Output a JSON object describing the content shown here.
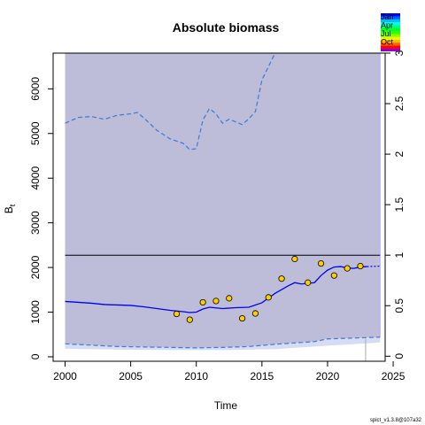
{
  "chart_data": {
    "type": "line",
    "title": "Absolute biomass",
    "xlabel": "Time",
    "ylabel": "B",
    "ylabel_subscript": "t",
    "xlim": [
      2000,
      2024
    ],
    "ylim": [
      -100,
      6800
    ],
    "ylim_right": [
      -0.05,
      3.0
    ],
    "x_ticks": [
      2000,
      2005,
      2010,
      2015,
      2020,
      2025
    ],
    "y_ticks": [
      0,
      1000,
      2000,
      3000,
      4000,
      5000,
      6000
    ],
    "y_ticks_right": [
      0,
      0.5,
      1,
      1.5,
      2,
      2.5,
      3
    ],
    "y_ticks_right_labels": [
      "0",
      "0.5",
      "1",
      "1.5",
      "2",
      "2.5",
      "3"
    ],
    "reference_line_right": 1,
    "colors": {
      "estimate": "#0000ee",
      "ci_line": "#3a7bd5",
      "ci_fill_upper": "#bdbdd9",
      "ci_fill_lower": "#d7dcf5",
      "points_fill": "#ffcc00",
      "points_stroke": "#000000"
    },
    "estimate": {
      "x": [
        2000,
        2001,
        2002,
        2003,
        2004,
        2005,
        2006,
        2007,
        2008,
        2009,
        2009.5,
        2010,
        2010.5,
        2011,
        2012,
        2013,
        2014,
        2015,
        2016,
        2017,
        2017.5,
        2018,
        2019,
        2019.5,
        2020,
        2020.5,
        2021,
        2021.5,
        2022,
        2022.5,
        2023
      ],
      "y": [
        1240,
        1220,
        1200,
        1170,
        1160,
        1150,
        1120,
        1080,
        1040,
        1010,
        990,
        1000,
        1070,
        1110,
        1080,
        1100,
        1110,
        1210,
        1420,
        1590,
        1660,
        1630,
        1660,
        1820,
        1940,
        2010,
        2020,
        1990,
        1980,
        2010,
        2020
      ]
    },
    "estimate_projection": {
      "x": [
        2023,
        2024
      ],
      "y": [
        2020,
        2030
      ]
    },
    "ci_upper": {
      "x": [
        2000,
        2001,
        2002,
        2003,
        2004,
        2005,
        2005.5,
        2006,
        2007,
        2008,
        2009,
        2009.5,
        2010,
        2010.5,
        2011,
        2011.5,
        2012,
        2012.5,
        2013,
        2013.5,
        2014,
        2014.5,
        2015,
        2016
      ],
      "y": [
        5230,
        5360,
        5380,
        5320,
        5410,
        5440,
        5470,
        5350,
        5070,
        4880,
        4780,
        4640,
        4660,
        5300,
        5560,
        5440,
        5230,
        5320,
        5260,
        5200,
        5330,
        5490,
        6200,
        7200
      ]
    },
    "ci_lower": {
      "x": [
        2000,
        2002,
        2004,
        2006,
        2008,
        2010,
        2012,
        2014,
        2016,
        2018,
        2019,
        2020,
        2022,
        2024
      ],
      "y": [
        290,
        260,
        230,
        220,
        210,
        200,
        210,
        230,
        280,
        320,
        340,
        400,
        420,
        440
      ]
    },
    "ci_lower_fill_bottom": {
      "x": [
        2000,
        2004,
        2008,
        2012,
        2016,
        2020,
        2024
      ],
      "y": [
        180,
        160,
        150,
        150,
        170,
        250,
        320
      ]
    },
    "observations": {
      "x": [
        2008.5,
        2009.5,
        2010.5,
        2011.5,
        2012.5,
        2013.5,
        2014.5,
        2015.5,
        2016.5,
        2017.5,
        2018.5,
        2019.5,
        2020.5,
        2021.5,
        2022.5
      ],
      "y": [
        960,
        830,
        1220,
        1250,
        1310,
        860,
        970,
        1330,
        1750,
        2190,
        1660,
        2090,
        1820,
        1980,
        2030
      ]
    },
    "legend": {
      "labels": [
        "Jan",
        "Apr",
        "Jul",
        "Oct"
      ],
      "placement": "top-right"
    },
    "footer_text": "spict_v1.3.8@107a32"
  }
}
